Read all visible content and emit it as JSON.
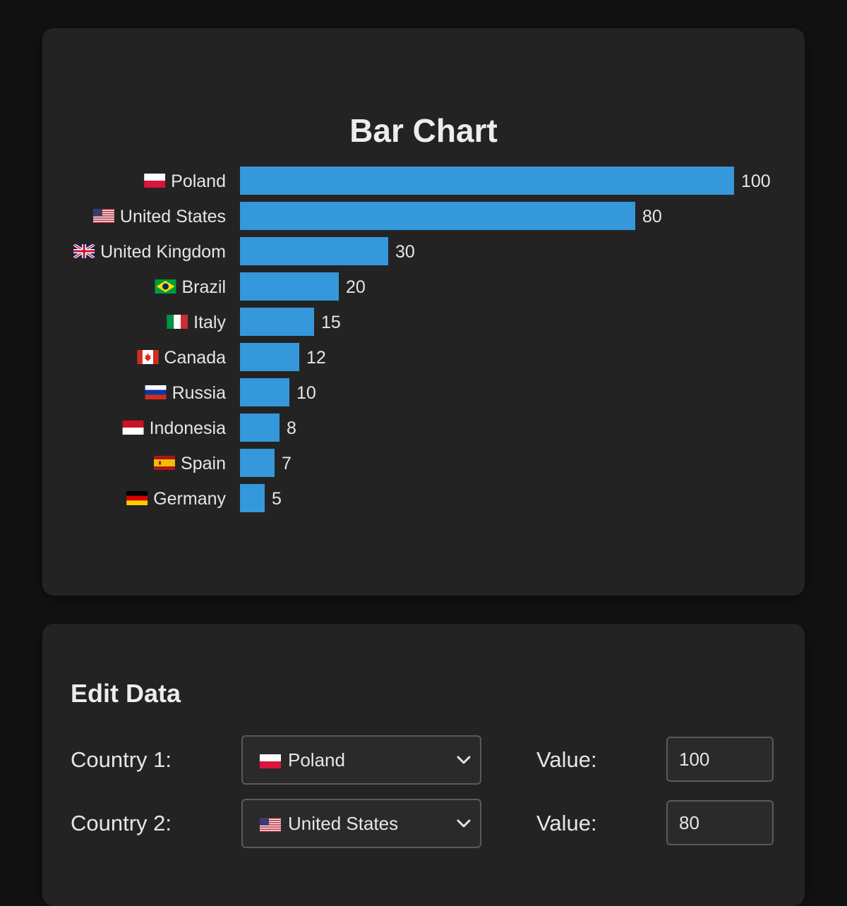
{
  "chart_data": {
    "type": "bar",
    "orientation": "horizontal",
    "title": "Bar Chart",
    "categories": [
      "Poland",
      "United States",
      "United Kingdom",
      "Brazil",
      "Italy",
      "Canada",
      "Russia",
      "Indonesia",
      "Spain",
      "Germany"
    ],
    "flags": [
      "flag-poland-icon",
      "flag-united-states-icon",
      "flag-united-kingdom-icon",
      "flag-brazil-icon",
      "flag-italy-icon",
      "flag-canada-icon",
      "flag-russia-icon",
      "flag-indonesia-icon",
      "flag-spain-icon",
      "flag-germany-icon"
    ],
    "values": [
      100,
      80,
      30,
      20,
      15,
      12,
      10,
      8,
      7,
      5
    ],
    "xlim": [
      0,
      100
    ],
    "grid": false,
    "bar_color": "#3498db",
    "value_labels": true
  },
  "edit": {
    "title": "Edit Data",
    "value_label": "Value:",
    "rows": [
      {
        "label": "Country 1:",
        "country": "Poland",
        "flag": "flag-poland-icon",
        "value": "100"
      },
      {
        "label": "Country 2:",
        "country": "United States",
        "flag": "flag-united-states-icon",
        "value": "80"
      }
    ]
  },
  "colors": {
    "page_bg": "#121212",
    "card_bg": "#232323",
    "bar": "#3498db",
    "text": "#e6e6e6"
  }
}
